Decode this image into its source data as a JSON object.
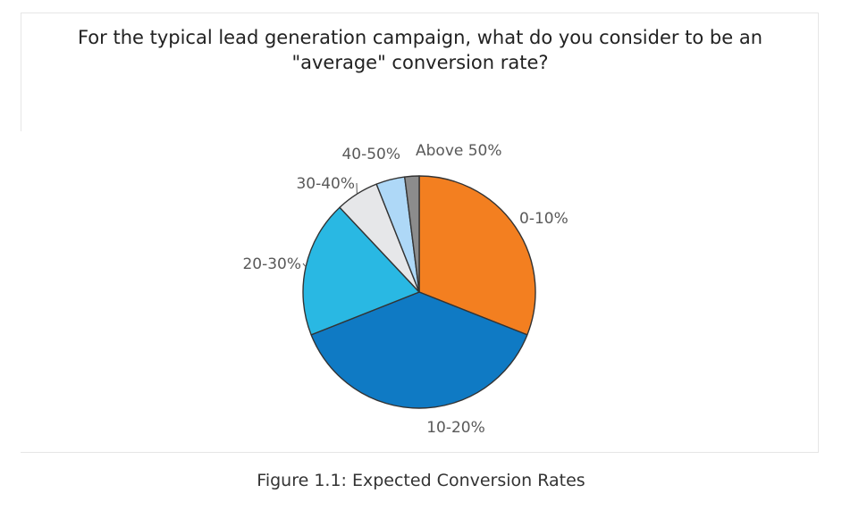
{
  "chart_data": {
    "type": "pie",
    "title_lines": [
      "For the typical lead generation campaign, what do you consider to be an",
      "\"average\" conversion rate?"
    ],
    "slices": [
      {
        "label": "0-10%",
        "value": 31,
        "color": "#f37f20"
      },
      {
        "label": "10-20%",
        "value": 38,
        "color": "#0f7ac4"
      },
      {
        "label": "20-30%",
        "value": 19,
        "color": "#29b8e3"
      },
      {
        "label": "30-40%",
        "value": 6,
        "color": "#e6e7e9"
      },
      {
        "label": "40-50%",
        "value": 4,
        "color": "#aed8f7"
      },
      {
        "label": "Above 50%",
        "value": 2,
        "color": "#8c8c8c"
      }
    ],
    "start": "top",
    "direction": "clockwise",
    "legend": "none"
  },
  "caption": "Figure 1.1: Expected Conversion Rates"
}
